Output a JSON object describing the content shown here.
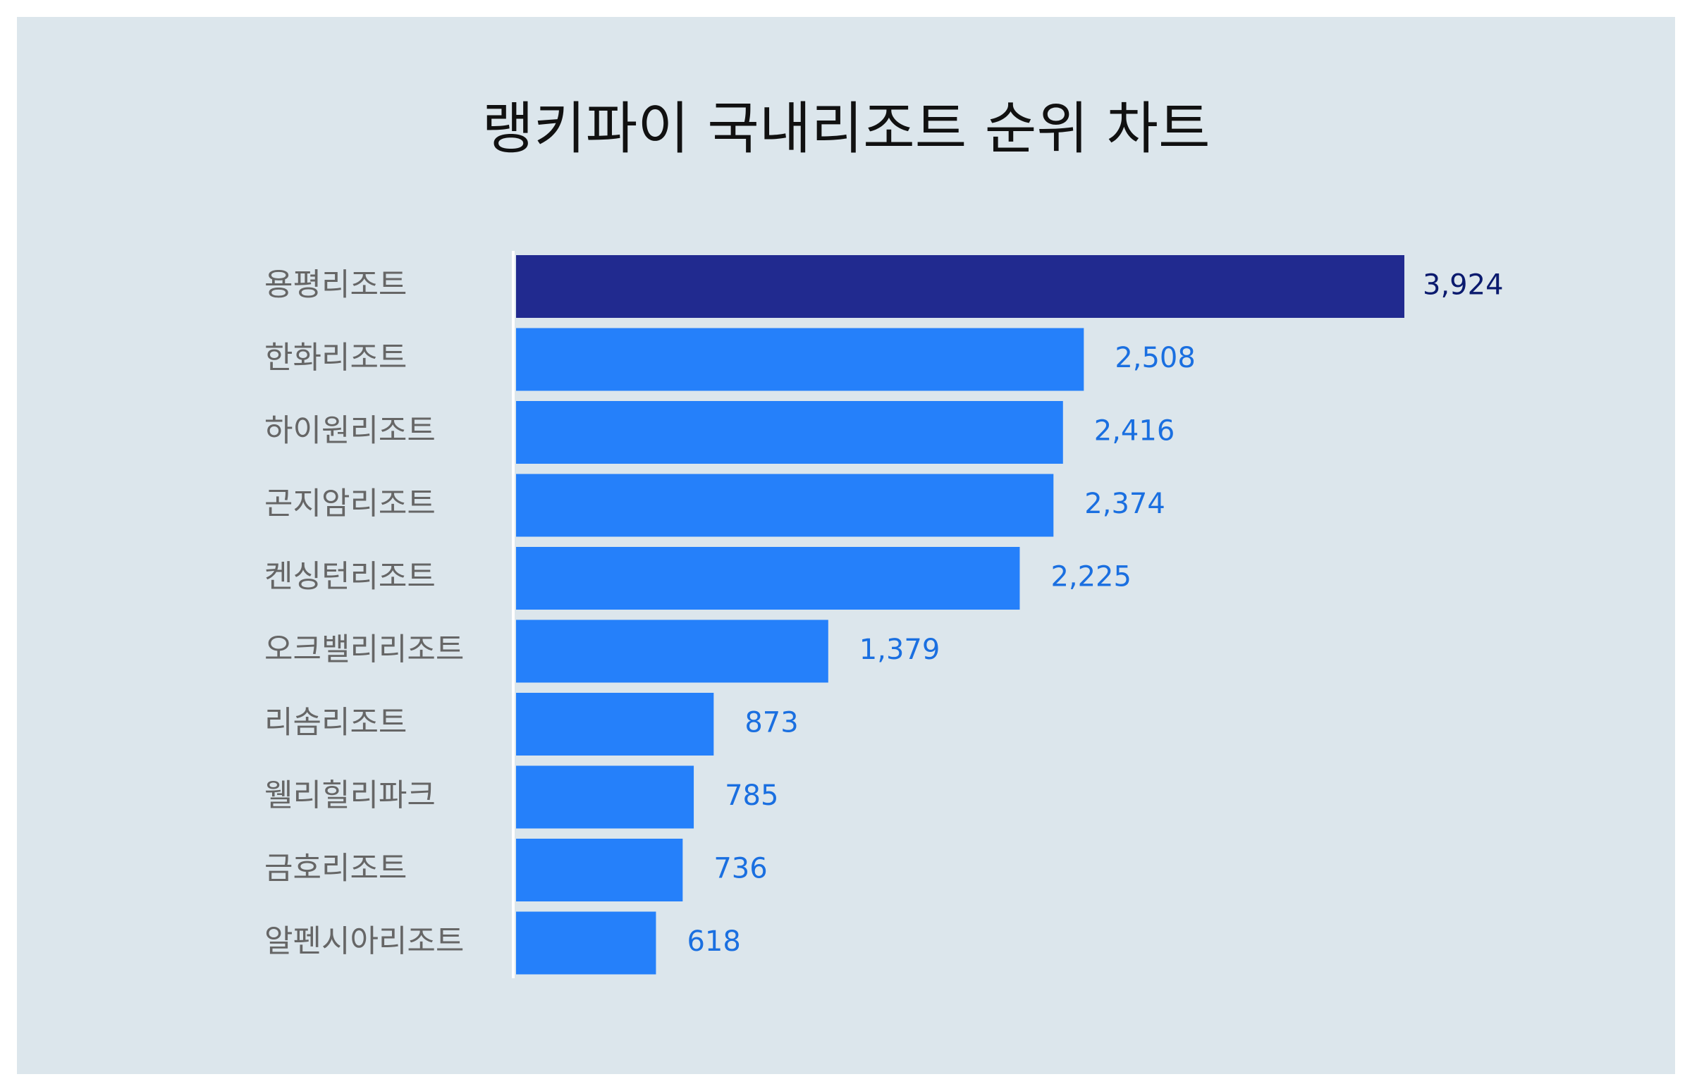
{
  "chart_data": {
    "type": "bar",
    "orientation": "horizontal",
    "title": "랭키파이 국내리조트 순위 차트",
    "categories": [
      "용평리조트",
      "한화리조트",
      "하이원리조트",
      "곤지암리조트",
      "켄싱턴리조트",
      "오크밸리리조트",
      "리솜리조트",
      "웰리힐리파크",
      "금호리조트",
      "알펜시아리조트"
    ],
    "values": [
      3924,
      2508,
      2416,
      2374,
      2225,
      1379,
      873,
      785,
      736,
      618
    ],
    "value_labels": [
      "3,924",
      "2,508",
      "2,416",
      "2,374",
      "2,225",
      "1,379",
      "873",
      "785",
      "736",
      "618"
    ],
    "xlim": [
      0,
      3924
    ],
    "grid": false,
    "legend": "none",
    "colors": {
      "top_bar": "#212a8f",
      "bar": "#2580fa",
      "top_label": "#0a1a6e",
      "label": "#1a6fe0",
      "category": "#666666",
      "background": "#dce6ec",
      "axis": "#ffffff"
    }
  }
}
